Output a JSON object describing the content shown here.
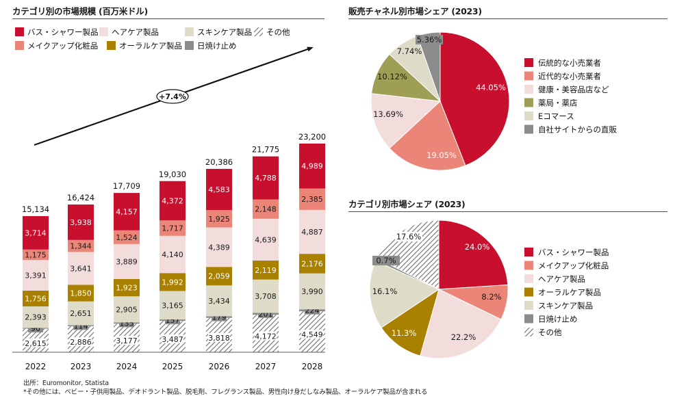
{
  "colors": {
    "bath": "#c8102e",
    "makeup": "#ea8577",
    "hair": "#f3dcdc",
    "skin": "#dedbc8",
    "oral": "#a98000",
    "sun": "#8c8c8c",
    "other_hatch": "#777777",
    "retail_old": "#c8102e",
    "retail_modern": "#ea8577",
    "health_store": "#f3dcdc",
    "drugstore": "#9e9e55",
    "ecommerce": "#dedbc8",
    "d2c": "#8c8c8c",
    "accent": "#c8102e"
  },
  "bar_panel": {
    "title": "カテゴリ別の市場規模 (百万米ドル)",
    "cagr_label": "+7.4%"
  },
  "channel_panel": {
    "title": "販売チャネル別市場シェア (2023)"
  },
  "category_panel": {
    "title": "カテゴリ別市場シェア (2023)"
  },
  "notes": {
    "source": "出所：Euromonitor, Statista",
    "footnote": "*その他には、ベビー・子供用製品、デオドラント製品、脱毛剤、フレグランス製品、男性向け身だしなみ製品、オーラルケア製品が含まれる"
  },
  "chart_data": [
    {
      "type": "bar",
      "stacked": true,
      "title": "カテゴリ別の市場規模 (百万米ドル)",
      "categories": [
        "2022",
        "2023",
        "2024",
        "2025",
        "2026",
        "2027",
        "2028"
      ],
      "totals": [
        "15,134",
        "16,424",
        "17,709",
        "19,030",
        "20,386",
        "21,775",
        "23,200"
      ],
      "series": [
        {
          "name": "その他",
          "key": "other",
          "values": [
            2615,
            2886,
            3177,
            3487,
            3818,
            4172,
            4549
          ],
          "labels": [
            "2,615",
            "2,886",
            "3,177",
            "3,487",
            "3,818",
            "4,172",
            "4,549"
          ]
        },
        {
          "name": "日焼け止め",
          "key": "sun",
          "values": [
            90,
            114,
            135,
            157,
            179,
            201,
            224
          ],
          "labels": [
            "90",
            "114",
            "135",
            "157",
            "179",
            "201",
            "224"
          ]
        },
        {
          "name": "スキンケア製品",
          "key": "skin",
          "values": [
            2393,
            2651,
            2905,
            3165,
            3434,
            3708,
            3990
          ],
          "labels": [
            "2,393",
            "2,651",
            "2,905",
            "3,165",
            "3,434",
            "3,708",
            "3,990"
          ]
        },
        {
          "name": "オーラルケア製品",
          "key": "oral",
          "values": [
            1756,
            1850,
            1923,
            1992,
            2059,
            2119,
            2176
          ],
          "labels": [
            "1,756",
            "1,850",
            "1,923",
            "1,992",
            "2,059",
            "2,119",
            "2,176"
          ]
        },
        {
          "name": "ヘアケア製品",
          "key": "hair",
          "values": [
            3391,
            3641,
            3889,
            4140,
            4389,
            4639,
            4887
          ],
          "labels": [
            "3,391",
            "3,641",
            "3,889",
            "4,140",
            "4,389",
            "4,639",
            "4,887"
          ]
        },
        {
          "name": "メイクアップ化粧品",
          "key": "makeup",
          "values": [
            1175,
            1344,
            1524,
            1717,
            1925,
            2148,
            2385
          ],
          "labels": [
            "1,175",
            "1,344",
            "1,524",
            "1,717",
            "1,925",
            "2,148",
            "2,385"
          ]
        },
        {
          "name": "バス・シャワー製品",
          "key": "bath",
          "values": [
            3714,
            3938,
            4157,
            4372,
            4583,
            4788,
            4989
          ],
          "labels": [
            "3,714",
            "3,938",
            "4,157",
            "4,372",
            "4,583",
            "4,788",
            "4,989"
          ]
        }
      ],
      "legend": [
        {
          "name": "バス・シャワー製品",
          "key": "bath"
        },
        {
          "name": "ヘアケア製品",
          "key": "hair"
        },
        {
          "name": "スキンケア製品",
          "key": "skin"
        },
        {
          "name": "その他",
          "key": "other"
        },
        {
          "name": "メイクアップ化粧品",
          "key": "makeup"
        },
        {
          "name": "オーラルケア製品",
          "key": "oral"
        },
        {
          "name": "日焼け止め",
          "key": "sun"
        }
      ],
      "annotation": "+7.4%",
      "grid": false,
      "legend_position": "top"
    },
    {
      "type": "pie",
      "title": "販売チャネル別市場シェア (2023)",
      "slices": [
        {
          "name": "伝統的な小売業者",
          "key": "retail_old",
          "value": 44.05,
          "label": "44.05%"
        },
        {
          "name": "近代的な小売業者",
          "key": "retail_modern",
          "value": 19.05,
          "label": "19.05%"
        },
        {
          "name": "健康・美容品店など",
          "key": "health_store",
          "value": 13.69,
          "label": "13.69%"
        },
        {
          "name": "薬局・薬店",
          "key": "drugstore",
          "value": 10.12,
          "label": "10.12%"
        },
        {
          "name": "Eコマース",
          "key": "ecommerce",
          "value": 7.74,
          "label": "7.74%"
        },
        {
          "name": "自社サイトからの直販",
          "key": "d2c",
          "value": 5.36,
          "label": "5.36%"
        }
      ],
      "legend_position": "right"
    },
    {
      "type": "pie",
      "title": "カテゴリ別市場シェア (2023)",
      "slices": [
        {
          "name": "バス・シャワー製品",
          "key": "bath",
          "value": 24.0,
          "label": "24.0%"
        },
        {
          "name": "メイクアップ化粧品",
          "key": "makeup",
          "value": 8.2,
          "label": "8.2%"
        },
        {
          "name": "ヘアケア製品",
          "key": "hair",
          "value": 22.2,
          "label": "22.2%"
        },
        {
          "name": "オーラルケア製品",
          "key": "oral",
          "value": 11.3,
          "label": "11.3%"
        },
        {
          "name": "スキンケア製品",
          "key": "skin",
          "value": 16.1,
          "label": "16.1%"
        },
        {
          "name": "日焼け止め",
          "key": "sun",
          "value": 0.7,
          "label": "0.7%"
        },
        {
          "name": "その他",
          "key": "other",
          "value": 17.6,
          "label": "17.6%"
        }
      ],
      "legend_position": "right"
    }
  ]
}
